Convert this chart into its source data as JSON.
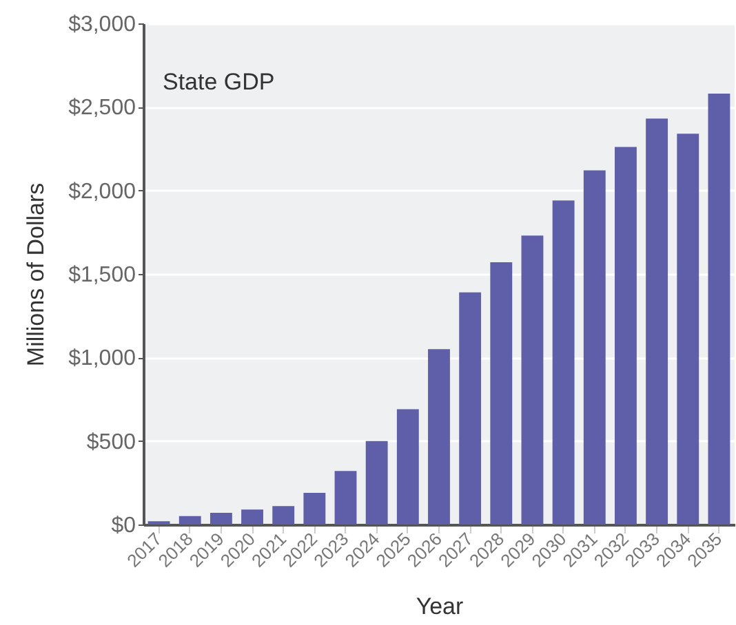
{
  "chart_data": {
    "type": "bar",
    "title": "State GDP",
    "xlabel": "Year",
    "ylabel": "Millions of Dollars",
    "categories": [
      "2017",
      "2018",
      "2019",
      "2020",
      "2021",
      "2022",
      "2023",
      "2024",
      "2025",
      "2026",
      "2027",
      "2028",
      "2029",
      "2030",
      "2031",
      "2032",
      "2033",
      "2034",
      "2035"
    ],
    "values": [
      20,
      50,
      70,
      90,
      110,
      190,
      320,
      500,
      690,
      1050,
      1390,
      1570,
      1730,
      1940,
      2120,
      2260,
      2430,
      2340,
      2580
    ],
    "color": "#5f5ea8",
    "ylim": [
      0,
      3000
    ],
    "yticks": [
      {
        "value": 0,
        "label": "$0"
      },
      {
        "value": 500,
        "label": "$500"
      },
      {
        "value": 1000,
        "label": "$1,000"
      },
      {
        "value": 1500,
        "label": "$1,500"
      },
      {
        "value": 2000,
        "label": "$2,000"
      },
      {
        "value": 2500,
        "label": "$2,500"
      },
      {
        "value": 3000,
        "label": "$3,000"
      }
    ],
    "grid": "y"
  }
}
